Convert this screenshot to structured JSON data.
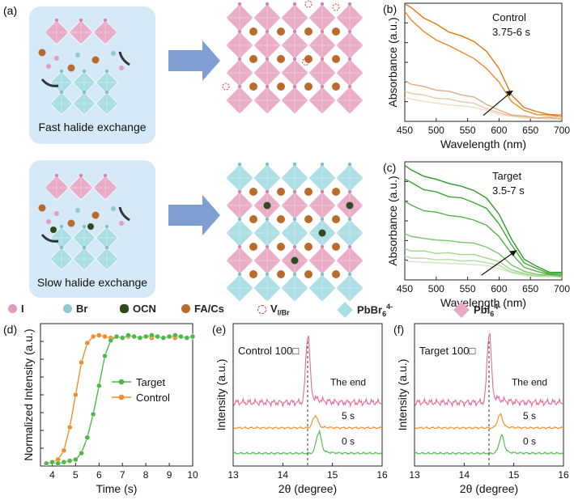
{
  "panels": {
    "a": "(a)",
    "b": "(b)",
    "c": "(c)",
    "d": "(d)",
    "e": "(e)",
    "f": "(f)"
  },
  "schematic": {
    "fast_caption": "Fast halide exchange",
    "slow_caption": "Slow halide exchange",
    "colors": {
      "pbi6": "#e9a9c6",
      "pbbr6": "#a7dde4",
      "arrow": "#7f9fd2",
      "box": "#d6e9f7",
      "cation": "#b86b2b"
    }
  },
  "legend": {
    "i": "I",
    "br": "Br",
    "ocn": "OCN",
    "facs": "FA/Cs",
    "vacancy": "V",
    "vacancy_sub": "I/Br",
    "pbbr6": "PbBr",
    "pbbr6_sub": "6",
    "pbbr6_sup": "4-",
    "pbi6": "PbI",
    "pbi6_sub": "6",
    "pbi6_sup": "4-"
  },
  "chart_data": [
    {
      "panel": "b",
      "type": "line",
      "annotation": [
        "Control",
        "3.75-6 s"
      ],
      "xlabel": "Wavelength (nm)",
      "ylabel": "Absorbance (a.u.)",
      "xlim": [
        450,
        700
      ],
      "xticks": [
        450,
        500,
        550,
        600,
        650,
        700
      ],
      "ylim": [
        0,
        1
      ],
      "grid": false,
      "arrow": "increasing time",
      "x": [
        450,
        460,
        480,
        500,
        520,
        540,
        560,
        580,
        600,
        620,
        640,
        660,
        680,
        700
      ],
      "series": [
        {
          "color": "#f3dcc4",
          "values": [
            0.2,
            0.19,
            0.17,
            0.155,
            0.14,
            0.13,
            0.12,
            0.09,
            0.06,
            0.04,
            0.03,
            0.025,
            0.02,
            0.02
          ]
        },
        {
          "color": "#ecc7a4",
          "values": [
            0.25,
            0.24,
            0.22,
            0.2,
            0.185,
            0.17,
            0.15,
            0.11,
            0.07,
            0.05,
            0.035,
            0.03,
            0.025,
            0.02
          ]
        },
        {
          "color": "#deac85",
          "values": [
            0.34,
            0.32,
            0.29,
            0.27,
            0.25,
            0.23,
            0.2,
            0.15,
            0.09,
            0.06,
            0.04,
            0.035,
            0.03,
            0.025
          ]
        },
        {
          "color": "#ed8a2b",
          "values": [
            0.93,
            0.86,
            0.76,
            0.69,
            0.64,
            0.59,
            0.53,
            0.45,
            0.33,
            0.17,
            0.09,
            0.06,
            0.05,
            0.04
          ]
        },
        {
          "color": "#e8760f",
          "values": [
            1.0,
            0.96,
            0.88,
            0.82,
            0.76,
            0.72,
            0.68,
            0.59,
            0.45,
            0.22,
            0.12,
            0.08,
            0.06,
            0.05
          ]
        }
      ]
    },
    {
      "panel": "c",
      "type": "line",
      "annotation": [
        "Target",
        "3.5-7 s"
      ],
      "xlabel": "Wavelength (nm)",
      "ylabel": "Absorbance (a.u.)",
      "xlim": [
        450,
        700
      ],
      "xticks": [
        450,
        500,
        550,
        600,
        650,
        700
      ],
      "ylim": [
        0,
        1
      ],
      "grid": false,
      "arrow": "increasing time",
      "x": [
        450,
        460,
        480,
        500,
        520,
        540,
        560,
        580,
        600,
        620,
        640,
        660,
        680,
        700
      ],
      "series": [
        {
          "color": "#cfe8c3",
          "values": [
            0.16,
            0.155,
            0.15,
            0.145,
            0.14,
            0.135,
            0.13,
            0.12,
            0.1,
            0.06,
            0.04,
            0.03,
            0.03,
            0.03
          ]
        },
        {
          "color": "#b8dea7",
          "values": [
            0.2,
            0.19,
            0.18,
            0.175,
            0.17,
            0.165,
            0.16,
            0.15,
            0.12,
            0.07,
            0.045,
            0.035,
            0.03,
            0.03
          ]
        },
        {
          "color": "#a2d68c",
          "values": [
            0.26,
            0.25,
            0.24,
            0.23,
            0.225,
            0.22,
            0.21,
            0.19,
            0.15,
            0.09,
            0.05,
            0.04,
            0.035,
            0.03
          ]
        },
        {
          "color": "#7cc46a",
          "values": [
            0.39,
            0.37,
            0.35,
            0.34,
            0.33,
            0.32,
            0.31,
            0.28,
            0.22,
            0.13,
            0.07,
            0.05,
            0.04,
            0.035
          ]
        },
        {
          "color": "#55b247",
          "values": [
            0.67,
            0.63,
            0.59,
            0.57,
            0.55,
            0.53,
            0.51,
            0.46,
            0.37,
            0.22,
            0.11,
            0.07,
            0.05,
            0.04
          ]
        },
        {
          "color": "#3fa634",
          "values": [
            0.86,
            0.82,
            0.77,
            0.74,
            0.71,
            0.69,
            0.66,
            0.6,
            0.48,
            0.29,
            0.15,
            0.09,
            0.06,
            0.05
          ]
        },
        {
          "color": "#2e9a27",
          "values": [
            0.97,
            0.93,
            0.88,
            0.85,
            0.82,
            0.79,
            0.76,
            0.69,
            0.56,
            0.34,
            0.18,
            0.11,
            0.07,
            0.06
          ]
        }
      ]
    },
    {
      "panel": "d",
      "type": "line",
      "xlabel": "Time (s)",
      "ylabel": "Normalized Intensity (a.u.)",
      "xlim": [
        3.5,
        10
      ],
      "xticks": [
        4,
        5,
        6,
        7,
        8,
        9,
        10
      ],
      "ylim": [
        0,
        1.1
      ],
      "grid": false,
      "legend": "center-right",
      "series": [
        {
          "name": "Target",
          "color": "#4db848",
          "x": [
            3.75,
            4.0,
            4.25,
            4.5,
            4.75,
            5.0,
            5.25,
            5.5,
            5.75,
            6.0,
            6.25,
            6.5,
            6.75,
            7.0,
            7.25,
            7.5,
            7.75,
            8.0,
            8.25,
            8.5,
            8.75,
            9.0,
            9.25,
            9.5,
            9.75,
            10.0
          ],
          "y": [
            0.02,
            0.03,
            0.02,
            0.03,
            0.04,
            0.05,
            0.1,
            0.22,
            0.4,
            0.62,
            0.85,
            0.97,
            1.0,
            0.99,
            1.01,
            1.0,
            0.99,
            1.0,
            1.01,
            1.0,
            0.99,
            1.0,
            1.01,
            1.0,
            0.99,
            1.0
          ]
        },
        {
          "name": "Control",
          "color": "#f28c28",
          "x": [
            3.75,
            4.0,
            4.25,
            4.5,
            4.75,
            5.0,
            5.25,
            5.5,
            5.75,
            6.0,
            6.25,
            6.5,
            6.75,
            7.0,
            7.25,
            7.5,
            7.75,
            8.0,
            8.25,
            8.5,
            8.75,
            9.0,
            9.25,
            9.5,
            9.75,
            10.0
          ],
          "y": [
            0.02,
            0.03,
            0.05,
            0.12,
            0.3,
            0.55,
            0.8,
            0.95,
            1.0,
            1.01,
            1.0,
            0.99,
            1.0,
            0.99,
            1.0,
            1.0,
            0.99,
            1.0,
            0.99,
            1.0,
            0.99,
            1.0,
            0.99,
            1.0,
            0.99,
            1.0
          ]
        }
      ]
    },
    {
      "panel": "e",
      "type": "line",
      "annotation": "Control 100□",
      "xlabel": "2θ (degree)",
      "ylabel": "Intensity (a.u.)",
      "xlim": [
        13,
        16
      ],
      "xticks": [
        13,
        14,
        15,
        16
      ],
      "grid": false,
      "reference_line_x": 14.5,
      "series": [
        {
          "name": "0 s",
          "color": "#4db848",
          "peak_x": 14.72,
          "offset": 0.0,
          "height": 0.8
        },
        {
          "name": "5 s",
          "color": "#f28c28",
          "peak_x": 14.65,
          "offset": 1.0,
          "height": 0.45
        },
        {
          "name": "The end",
          "color": "#e86a94",
          "peak_x": 14.5,
          "offset": 2.0,
          "height": 2.6
        }
      ]
    },
    {
      "panel": "f",
      "type": "line",
      "annotation": "Target 100□",
      "xlabel": "2θ (degree)",
      "ylabel": "Intensity (a.u.)",
      "xlim": [
        13,
        16
      ],
      "xticks": [
        13,
        14,
        15,
        16
      ],
      "grid": false,
      "reference_line_x": 14.5,
      "series": [
        {
          "name": "0 s",
          "color": "#4db848",
          "peak_x": 14.75,
          "offset": 0.0,
          "height": 0.65
        },
        {
          "name": "5 s",
          "color": "#f28c28",
          "peak_x": 14.72,
          "offset": 1.0,
          "height": 0.5
        },
        {
          "name": "The end",
          "color": "#e86a94",
          "peak_x": 14.5,
          "offset": 2.0,
          "height": 2.7
        }
      ]
    }
  ]
}
